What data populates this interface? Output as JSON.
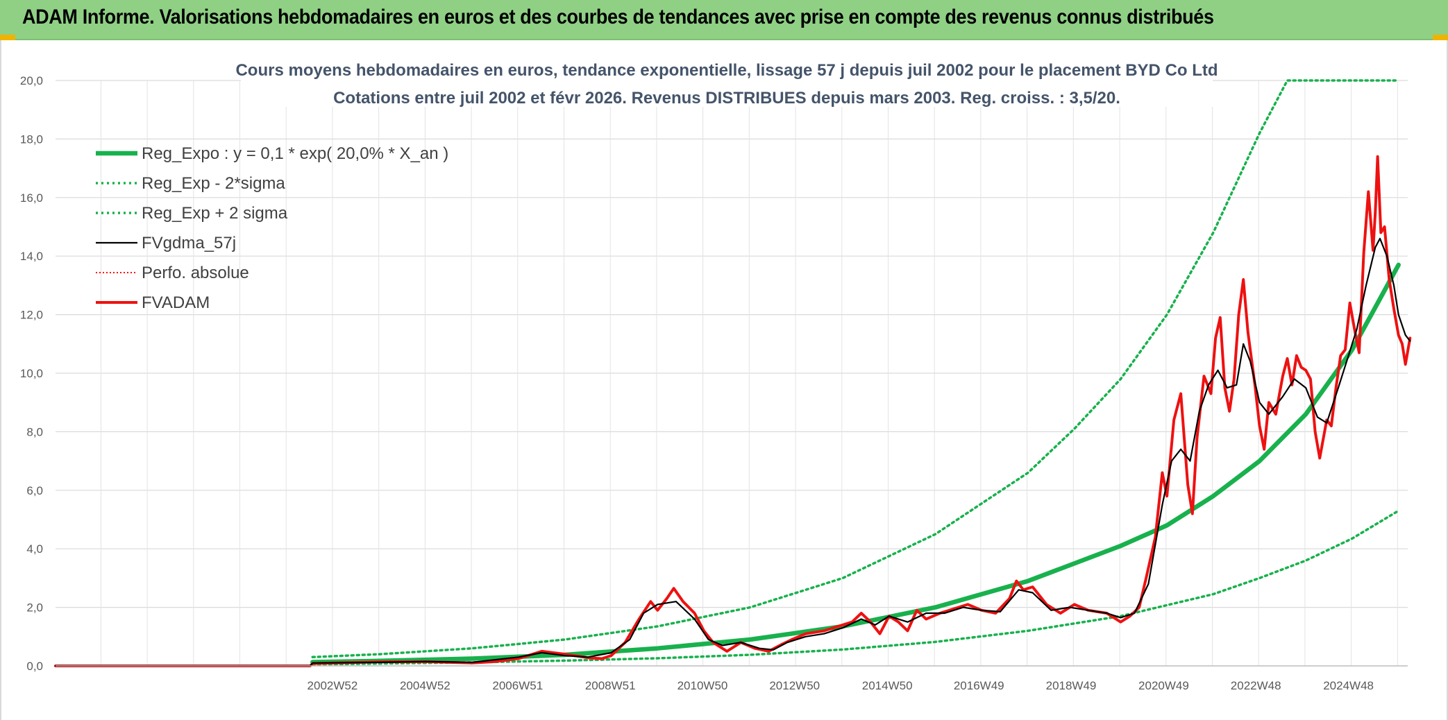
{
  "header": {
    "title": "ADAM Informe. Valorisations hebdomadaires en euros et des courbes de tendances avec prise en compte des revenus connus distribués"
  },
  "chart_data": {
    "type": "line",
    "title": "Cours moyens hebdomadaires en euros, tendance exponentielle, lissage 57 j depuis juil 2002 pour le placement BYD Co Ltd",
    "subtitle": "Cotations entre juil 2002 et févr 2026. Revenus DISTRIBUES depuis mars 2003. Reg. croiss. : 3,5/20.",
    "xlabel": "",
    "ylabel": "",
    "ylim": [
      0,
      20
    ],
    "yticks": [
      "0,0",
      "2,0",
      "4,0",
      "6,0",
      "8,0",
      "10,0",
      "12,0",
      "14,0",
      "16,0",
      "18,0",
      "20,0"
    ],
    "xlim": [
      1997.0,
      2026.2
    ],
    "xticks": [
      {
        "label": "2002W52",
        "x": 2002.98
      },
      {
        "label": "2004W52",
        "x": 2004.98
      },
      {
        "label": "2006W51",
        "x": 2006.98
      },
      {
        "label": "2008W51",
        "x": 2008.98
      },
      {
        "label": "2010W50",
        "x": 2010.97
      },
      {
        "label": "2012W50",
        "x": 2012.96
      },
      {
        "label": "2014W50",
        "x": 2014.96
      },
      {
        "label": "2016W49",
        "x": 2016.94
      },
      {
        "label": "2018W49",
        "x": 2018.93
      },
      {
        "label": "2020W49",
        "x": 2020.93
      },
      {
        "label": "2022W48",
        "x": 2022.92
      },
      {
        "label": "2024W48",
        "x": 2024.92
      }
    ],
    "grid": true,
    "legend_position": "top-left",
    "colors": {
      "reg": "#18b14d",
      "band": "#18b14d",
      "fv": "#000000",
      "perfo": "#ff0000",
      "adam": "#ee1111",
      "title": "#44546a",
      "header_bg": "#8fd085"
    },
    "series": [
      {
        "name": "Reg_Expo : y = 0,1 * exp( 20,0% *  X_an )",
        "style": "solid-thick",
        "points": [
          [
            2002.55,
            0.13
          ],
          [
            2004,
            0.17
          ],
          [
            2006,
            0.25
          ],
          [
            2008,
            0.38
          ],
          [
            2010,
            0.6
          ],
          [
            2012,
            0.9
          ],
          [
            2014,
            1.35
          ],
          [
            2016,
            2.0
          ],
          [
            2018,
            2.9
          ],
          [
            2020,
            4.1
          ],
          [
            2021,
            4.8
          ],
          [
            2022,
            5.8
          ],
          [
            2023,
            7.0
          ],
          [
            2024,
            8.6
          ],
          [
            2025,
            10.8
          ],
          [
            2026.0,
            13.7
          ]
        ]
      },
      {
        "name": "Reg_Exp - 2*sigma",
        "style": "dotted",
        "points": [
          [
            2002.55,
            0.05
          ],
          [
            2004,
            0.08
          ],
          [
            2006,
            0.12
          ],
          [
            2008,
            0.18
          ],
          [
            2010,
            0.26
          ],
          [
            2012,
            0.38
          ],
          [
            2014,
            0.56
          ],
          [
            2016,
            0.82
          ],
          [
            2018,
            1.2
          ],
          [
            2020,
            1.7
          ],
          [
            2022,
            2.45
          ],
          [
            2023,
            3.0
          ],
          [
            2024,
            3.6
          ],
          [
            2025,
            4.35
          ],
          [
            2026.0,
            5.3
          ]
        ]
      },
      {
        "name": "Reg_Exp + 2 sigma",
        "style": "dotted",
        "points": [
          [
            2002.55,
            0.3
          ],
          [
            2004,
            0.4
          ],
          [
            2006,
            0.6
          ],
          [
            2008,
            0.9
          ],
          [
            2010,
            1.35
          ],
          [
            2012,
            2.0
          ],
          [
            2014,
            3.0
          ],
          [
            2016,
            4.5
          ],
          [
            2018,
            6.6
          ],
          [
            2019,
            8.1
          ],
          [
            2020,
            9.8
          ],
          [
            2021,
            12.0
          ],
          [
            2022,
            14.8
          ],
          [
            2023,
            18.2
          ],
          [
            2023.6,
            20.0
          ],
          [
            2026.0,
            20.0
          ]
        ]
      },
      {
        "name": "FVgdma_57j",
        "style": "solid-thin",
        "points": [
          [
            1997.0,
            0.0
          ],
          [
            2002.5,
            0.0
          ],
          [
            2002.55,
            0.1
          ],
          [
            2004,
            0.12
          ],
          [
            2005,
            0.15
          ],
          [
            2006,
            0.12
          ],
          [
            2007,
            0.3
          ],
          [
            2007.5,
            0.45
          ],
          [
            2008,
            0.35
          ],
          [
            2008.5,
            0.3
          ],
          [
            2009,
            0.45
          ],
          [
            2009.4,
            0.9
          ],
          [
            2009.7,
            1.8
          ],
          [
            2010.0,
            2.1
          ],
          [
            2010.4,
            2.2
          ],
          [
            2010.8,
            1.6
          ],
          [
            2011.1,
            0.9
          ],
          [
            2011.4,
            0.7
          ],
          [
            2011.8,
            0.8
          ],
          [
            2012.2,
            0.6
          ],
          [
            2012.5,
            0.55
          ],
          [
            2012.8,
            0.8
          ],
          [
            2013.2,
            1.0
          ],
          [
            2013.6,
            1.1
          ],
          [
            2014.0,
            1.3
          ],
          [
            2014.4,
            1.6
          ],
          [
            2014.7,
            1.4
          ],
          [
            2015.0,
            1.7
          ],
          [
            2015.4,
            1.5
          ],
          [
            2015.8,
            1.8
          ],
          [
            2016.2,
            1.8
          ],
          [
            2016.6,
            2.0
          ],
          [
            2017.0,
            1.9
          ],
          [
            2017.4,
            1.85
          ],
          [
            2017.8,
            2.6
          ],
          [
            2018.1,
            2.5
          ],
          [
            2018.5,
            1.9
          ],
          [
            2018.9,
            2.0
          ],
          [
            2019.3,
            1.9
          ],
          [
            2019.7,
            1.8
          ],
          [
            2020.0,
            1.65
          ],
          [
            2020.3,
            1.8
          ],
          [
            2020.6,
            2.8
          ],
          [
            2020.9,
            5.5
          ],
          [
            2021.1,
            7.0
          ],
          [
            2021.3,
            7.4
          ],
          [
            2021.5,
            7.0
          ],
          [
            2021.7,
            8.7
          ],
          [
            2021.9,
            9.6
          ],
          [
            2022.1,
            10.1
          ],
          [
            2022.3,
            9.5
          ],
          [
            2022.5,
            9.6
          ],
          [
            2022.65,
            11.0
          ],
          [
            2022.8,
            10.4
          ],
          [
            2023.0,
            9.0
          ],
          [
            2023.2,
            8.6
          ],
          [
            2023.5,
            9.2
          ],
          [
            2023.75,
            9.8
          ],
          [
            2024.0,
            9.5
          ],
          [
            2024.25,
            8.5
          ],
          [
            2024.45,
            8.3
          ],
          [
            2024.7,
            9.5
          ],
          [
            2024.9,
            10.5
          ],
          [
            2025.1,
            11.5
          ],
          [
            2025.3,
            13.0
          ],
          [
            2025.5,
            14.3
          ],
          [
            2025.6,
            14.6
          ],
          [
            2025.75,
            14.0
          ],
          [
            2025.9,
            13.0
          ],
          [
            2026.0,
            12.0
          ],
          [
            2026.15,
            11.3
          ],
          [
            2026.25,
            11.1
          ]
        ]
      },
      {
        "name": "Perfo. absolue",
        "style": "dotted-thin",
        "points": []
      },
      {
        "name": "FVADAM",
        "style": "solid",
        "points": [
          [
            1997.0,
            0.0
          ],
          [
            2002.5,
            0.0
          ],
          [
            2002.55,
            0.08
          ],
          [
            2003,
            0.1
          ],
          [
            2004,
            0.14
          ],
          [
            2005,
            0.15
          ],
          [
            2005.5,
            0.12
          ],
          [
            2006,
            0.1
          ],
          [
            2006.5,
            0.15
          ],
          [
            2007,
            0.25
          ],
          [
            2007.5,
            0.5
          ],
          [
            2008,
            0.4
          ],
          [
            2008.5,
            0.28
          ],
          [
            2008.8,
            0.25
          ],
          [
            2009.0,
            0.35
          ],
          [
            2009.3,
            0.8
          ],
          [
            2009.6,
            1.6
          ],
          [
            2009.85,
            2.2
          ],
          [
            2010.0,
            1.9
          ],
          [
            2010.2,
            2.3
          ],
          [
            2010.35,
            2.65
          ],
          [
            2010.55,
            2.2
          ],
          [
            2010.8,
            1.8
          ],
          [
            2011.0,
            1.2
          ],
          [
            2011.2,
            0.8
          ],
          [
            2011.5,
            0.5
          ],
          [
            2011.8,
            0.8
          ],
          [
            2012.1,
            0.6
          ],
          [
            2012.4,
            0.5
          ],
          [
            2012.7,
            0.75
          ],
          [
            2012.9,
            0.9
          ],
          [
            2013.2,
            1.1
          ],
          [
            2013.6,
            1.2
          ],
          [
            2013.9,
            1.35
          ],
          [
            2014.2,
            1.5
          ],
          [
            2014.4,
            1.8
          ],
          [
            2014.6,
            1.5
          ],
          [
            2014.8,
            1.1
          ],
          [
            2015.0,
            1.7
          ],
          [
            2015.2,
            1.5
          ],
          [
            2015.4,
            1.2
          ],
          [
            2015.6,
            1.9
          ],
          [
            2015.8,
            1.6
          ],
          [
            2016.1,
            1.8
          ],
          [
            2016.4,
            1.95
          ],
          [
            2016.7,
            2.1
          ],
          [
            2017.0,
            1.9
          ],
          [
            2017.3,
            1.8
          ],
          [
            2017.6,
            2.3
          ],
          [
            2017.75,
            2.9
          ],
          [
            2017.9,
            2.6
          ],
          [
            2018.1,
            2.7
          ],
          [
            2018.4,
            2.1
          ],
          [
            2018.7,
            1.8
          ],
          [
            2019.0,
            2.1
          ],
          [
            2019.3,
            1.9
          ],
          [
            2019.7,
            1.8
          ],
          [
            2020.0,
            1.5
          ],
          [
            2020.2,
            1.7
          ],
          [
            2020.4,
            2.0
          ],
          [
            2020.55,
            3.0
          ],
          [
            2020.75,
            4.4
          ],
          [
            2020.9,
            6.6
          ],
          [
            2021.0,
            5.8
          ],
          [
            2021.15,
            8.4
          ],
          [
            2021.3,
            9.3
          ],
          [
            2021.45,
            6.2
          ],
          [
            2021.55,
            5.2
          ],
          [
            2021.65,
            7.8
          ],
          [
            2021.8,
            9.9
          ],
          [
            2021.95,
            9.3
          ],
          [
            2022.05,
            11.2
          ],
          [
            2022.15,
            11.9
          ],
          [
            2022.25,
            9.5
          ],
          [
            2022.35,
            8.7
          ],
          [
            2022.45,
            9.8
          ],
          [
            2022.55,
            12.0
          ],
          [
            2022.65,
            13.2
          ],
          [
            2022.75,
            11.4
          ],
          [
            2022.9,
            9.6
          ],
          [
            2023.0,
            8.2
          ],
          [
            2023.1,
            7.4
          ],
          [
            2023.2,
            9.0
          ],
          [
            2023.35,
            8.6
          ],
          [
            2023.5,
            9.9
          ],
          [
            2023.6,
            10.5
          ],
          [
            2023.7,
            9.6
          ],
          [
            2023.8,
            10.6
          ],
          [
            2023.9,
            10.2
          ],
          [
            2024.0,
            10.1
          ],
          [
            2024.1,
            9.8
          ],
          [
            2024.2,
            8.0
          ],
          [
            2024.3,
            7.1
          ],
          [
            2024.45,
            8.4
          ],
          [
            2024.55,
            8.2
          ],
          [
            2024.65,
            9.5
          ],
          [
            2024.75,
            10.6
          ],
          [
            2024.85,
            10.8
          ],
          [
            2024.95,
            12.4
          ],
          [
            2025.05,
            11.5
          ],
          [
            2025.15,
            10.7
          ],
          [
            2025.25,
            14.1
          ],
          [
            2025.35,
            16.2
          ],
          [
            2025.45,
            14.2
          ],
          [
            2025.5,
            15.5
          ],
          [
            2025.55,
            17.4
          ],
          [
            2025.62,
            14.8
          ],
          [
            2025.7,
            15.0
          ],
          [
            2025.8,
            13.2
          ],
          [
            2025.9,
            12.2
          ],
          [
            2026.0,
            11.3
          ],
          [
            2026.08,
            11.0
          ],
          [
            2026.15,
            10.3
          ],
          [
            2026.25,
            11.2
          ]
        ]
      }
    ]
  }
}
